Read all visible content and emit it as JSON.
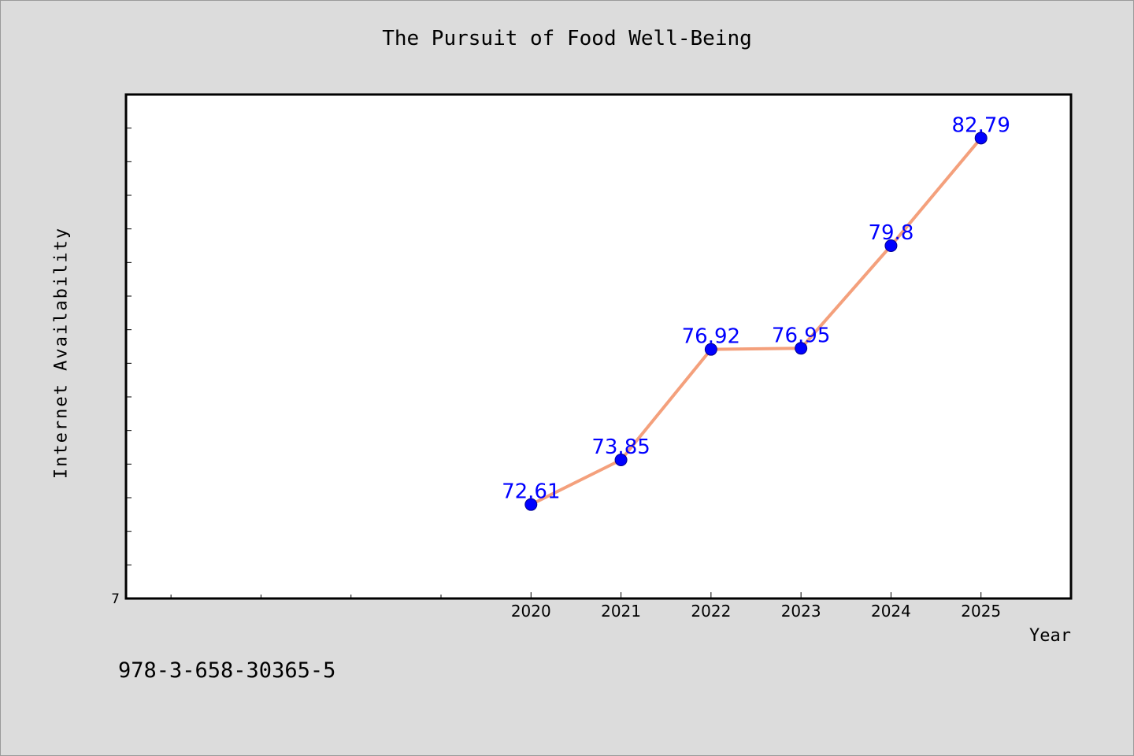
{
  "chart_data": {
    "type": "line",
    "title": "The Pursuit of Food Well-Being",
    "xlabel": "Year",
    "ylabel": "Internet Availability",
    "x_range": [
      2015.5,
      2026
    ],
    "ylim": [
      70,
      84
    ],
    "y_tick_label": "7",
    "x": [
      "2020",
      "2021",
      "2022",
      "2023",
      "2024",
      "2025"
    ],
    "series": [
      {
        "values": [
          72.61,
          73.85,
          76.92,
          76.95,
          79.8,
          82.79
        ],
        "labels": [
          "72.61",
          "73.85",
          "76.92",
          "76.95",
          "79.8",
          "82.79"
        ]
      }
    ],
    "grid": false,
    "colors": {
      "line": "#f4a07c",
      "marker": "#0000ff",
      "label": "#0000ff",
      "plot_bg": "#ffffff",
      "page_bg": "#dcdcdc"
    }
  },
  "footer": {
    "isbn": "978-3-658-30365-5"
  }
}
